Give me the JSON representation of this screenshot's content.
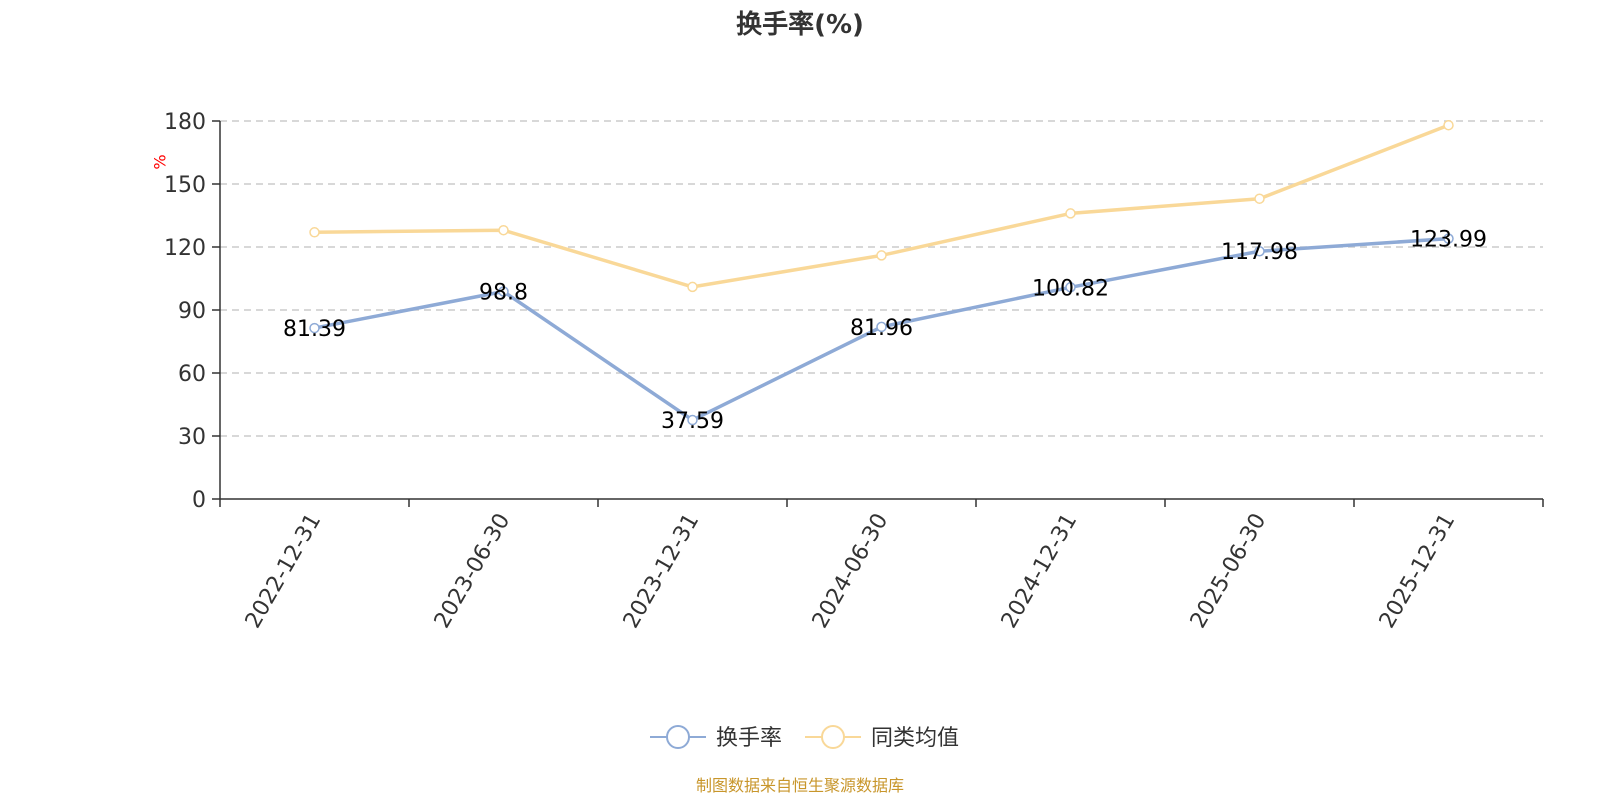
{
  "chart_data": {
    "type": "line",
    "title": "换手率(%)",
    "ylabel": "%",
    "xlabel": "",
    "categories": [
      "2022-12-31",
      "2023-06-30",
      "2023-12-31",
      "2024-06-30",
      "2024-12-31",
      "2025-06-30",
      "2025-12-31"
    ],
    "ylim": [
      0,
      180
    ],
    "yticks": [
      0,
      30,
      60,
      90,
      120,
      150,
      180
    ],
    "grid": true,
    "legend_position": "bottom-center",
    "series": [
      {
        "name": "换手率",
        "color": "#8eaad6",
        "values": [
          81.39,
          98.8,
          37.59,
          81.96,
          100.82,
          117.98,
          123.99
        ],
        "labels": [
          "81.39",
          "98.8",
          "37.59",
          "81.96",
          "100.82",
          "117.98",
          "123.99"
        ]
      },
      {
        "name": "同类均值",
        "color": "#f9d898",
        "values": [
          127,
          128,
          101,
          116,
          136,
          143,
          178
        ]
      }
    ],
    "source": "制图数据来自恒生聚源数据库",
    "source_color": "#c8962b",
    "unit_color": "#ff0000"
  }
}
